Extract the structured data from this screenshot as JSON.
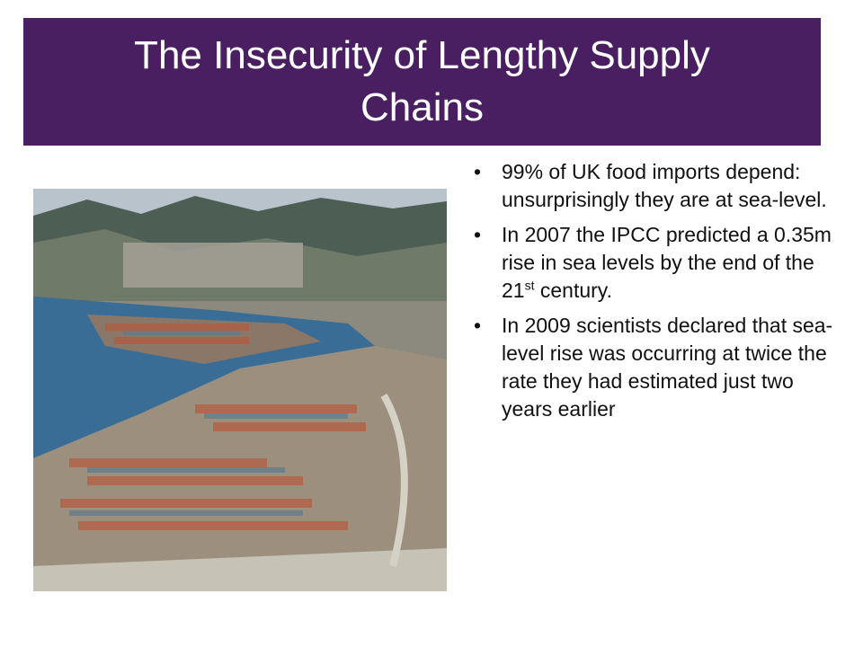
{
  "title": "The Insecurity of Lengthy Supply Chains",
  "bullets": [
    {
      "parts": [
        "99% of UK food imports depend: unsurprisingly they are at sea-level."
      ]
    },
    {
      "parts": [
        "In 2007 the IPCC predicted a 0.35m rise in sea levels by the end of the 21",
        "st",
        " century."
      ]
    },
    {
      "parts": [
        "In 2009 scientists declared that sea-level rise was occurring at twice the rate they had estimated just two years earlier"
      ]
    }
  ]
}
